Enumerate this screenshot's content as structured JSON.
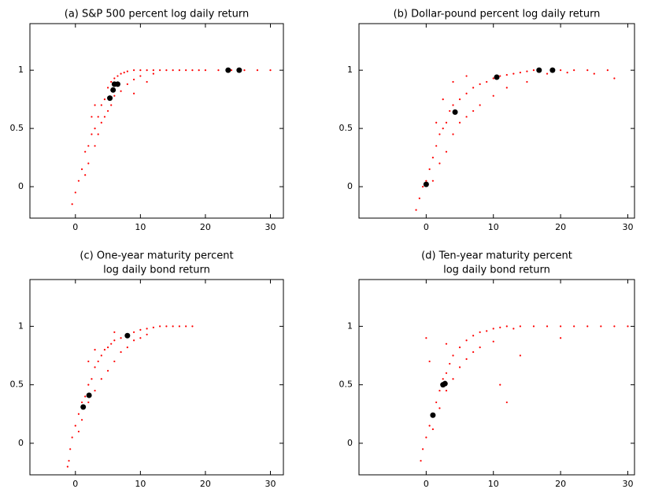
{
  "chart_data": [
    {
      "type": "scatter",
      "title": [
        "(a) S&P 500 percent log daily return"
      ],
      "xlim": [
        -7,
        32
      ],
      "ylim": [
        -0.27,
        1.4
      ],
      "xticks": [
        0,
        10,
        20,
        30
      ],
      "yticks": [
        0,
        0.5,
        1
      ],
      "series": [
        {
          "color": "#ff0000",
          "x": [
            -0.5,
            0,
            0.5,
            1,
            1.5,
            2,
            2,
            2.5,
            3,
            3,
            3.5,
            3.5,
            4,
            4,
            4.5,
            4.5,
            5,
            5,
            5.5,
            5.5,
            6,
            6,
            6.5,
            7,
            7,
            7.5,
            8,
            8,
            9,
            9,
            10,
            10,
            11,
            12,
            12,
            13,
            14,
            15,
            16,
            17,
            18,
            19,
            20,
            22,
            24,
            26,
            28,
            30,
            2.5,
            3,
            1.5,
            9,
            11
          ],
          "values": [
            -0.15,
            -0.05,
            0.05,
            0.15,
            0.3,
            0.35,
            0.2,
            0.45,
            0.5,
            0.35,
            0.6,
            0.45,
            0.7,
            0.55,
            0.75,
            0.6,
            0.85,
            0.65,
            0.9,
            0.7,
            0.93,
            0.78,
            0.95,
            0.97,
            0.82,
            0.98,
            0.99,
            0.88,
            1,
            0.92,
            1,
            0.95,
            1,
            1,
            0.97,
            1,
            1,
            1,
            1,
            1,
            1,
            1,
            1,
            1,
            1,
            1,
            1,
            1,
            0.6,
            0.7,
            0.1,
            0.8,
            0.9
          ]
        },
        {
          "color": "#000000",
          "x": [
            5.3,
            5.8,
            6,
            6.5,
            23.5,
            25.2
          ],
          "values": [
            0.76,
            0.83,
            0.88,
            0.88,
            1,
            1
          ]
        }
      ]
    },
    {
      "type": "scatter",
      "title": [
        "(b) Dollar-pound percent log daily return"
      ],
      "xlim": [
        -10,
        31
      ],
      "ylim": [
        -0.27,
        1.4
      ],
      "xticks": [
        0,
        10,
        20,
        30
      ],
      "yticks": [
        0,
        0.5,
        1
      ],
      "series": [
        {
          "color": "#ff0000",
          "x": [
            -1.5,
            -1,
            -0.5,
            0,
            0.5,
            1,
            1,
            1.5,
            2,
            2,
            2.5,
            3,
            3,
            3.5,
            4,
            4,
            5,
            5,
            6,
            6,
            7,
            7,
            8,
            8,
            9,
            10,
            10,
            11,
            12,
            12,
            13,
            14,
            15,
            15,
            16,
            17,
            18,
            19,
            20,
            21,
            22,
            24,
            25,
            27,
            28,
            1.5,
            2.5,
            4,
            6
          ],
          "values": [
            -0.2,
            -0.1,
            0,
            0.05,
            0.15,
            0.25,
            0.05,
            0.35,
            0.45,
            0.2,
            0.5,
            0.55,
            0.3,
            0.65,
            0.7,
            0.45,
            0.75,
            0.55,
            0.8,
            0.6,
            0.85,
            0.65,
            0.88,
            0.7,
            0.9,
            0.93,
            0.78,
            0.95,
            0.96,
            0.85,
            0.97,
            0.98,
            0.99,
            0.9,
            1,
            1,
            0.97,
            1,
            1,
            0.98,
            1,
            1,
            0.97,
            1,
            0.93,
            0.55,
            0.75,
            0.9,
            0.95
          ]
        },
        {
          "color": "#000000",
          "x": [
            0,
            4.3,
            10.5,
            16.8,
            18.8
          ],
          "values": [
            0.02,
            0.64,
            0.94,
            1,
            1
          ]
        }
      ]
    },
    {
      "type": "scatter",
      "title": [
        "(c) One-year maturity percent",
        "log daily bond return"
      ],
      "xlim": [
        -7,
        32
      ],
      "ylim": [
        -0.27,
        1.4
      ],
      "xticks": [
        0,
        10,
        20,
        30
      ],
      "yticks": [
        0,
        0.5,
        1
      ],
      "series": [
        {
          "color": "#ff0000",
          "x": [
            -1.2,
            -1,
            -0.8,
            -0.5,
            0,
            0.5,
            0.5,
            1,
            1,
            1.5,
            2,
            2,
            2.5,
            3,
            3,
            3.5,
            4,
            4,
            4.5,
            5,
            5,
            5.5,
            6,
            6,
            7,
            7,
            8,
            8,
            9,
            9,
            10,
            10,
            11,
            12,
            13,
            14,
            15,
            16,
            17,
            18,
            2,
            3,
            6,
            11
          ],
          "values": [
            -0.2,
            -0.15,
            -0.05,
            0.05,
            0.15,
            0.25,
            0.1,
            0.35,
            0.2,
            0.4,
            0.5,
            0.35,
            0.55,
            0.65,
            0.45,
            0.7,
            0.75,
            0.55,
            0.8,
            0.82,
            0.62,
            0.85,
            0.88,
            0.7,
            0.9,
            0.78,
            0.93,
            0.82,
            0.95,
            0.88,
            0.97,
            0.9,
            0.98,
            0.99,
            1,
            1,
            1,
            1,
            1,
            1,
            0.7,
            0.8,
            0.95,
            0.93
          ]
        },
        {
          "color": "#000000",
          "x": [
            1.2,
            2.1,
            8
          ],
          "values": [
            0.31,
            0.41,
            0.92
          ]
        }
      ]
    },
    {
      "type": "scatter",
      "title": [
        "(d) Ten-year maturity percent",
        "log daily bond return"
      ],
      "xlim": [
        -10,
        31
      ],
      "ylim": [
        -0.27,
        1.4
      ],
      "xticks": [
        0,
        10,
        20,
        30
      ],
      "yticks": [
        0,
        0.5,
        1
      ],
      "series": [
        {
          "color": "#ff0000",
          "x": [
            -0.8,
            -0.5,
            0,
            0.5,
            1,
            1,
            1.5,
            2,
            2,
            2.5,
            3,
            3,
            3.5,
            4,
            4,
            5,
            5,
            6,
            6,
            7,
            7,
            8,
            8,
            9,
            10,
            10,
            11,
            12,
            13,
            14,
            16,
            18,
            20,
            22,
            24,
            26,
            28,
            30,
            0,
            0.5,
            11,
            12,
            14,
            20,
            3
          ],
          "values": [
            -0.15,
            -0.05,
            0.05,
            0.15,
            0.25,
            0.12,
            0.35,
            0.45,
            0.3,
            0.55,
            0.6,
            0.45,
            0.68,
            0.75,
            0.55,
            0.82,
            0.65,
            0.88,
            0.72,
            0.92,
            0.78,
            0.95,
            0.82,
            0.96,
            0.98,
            0.87,
            0.99,
            1,
            0.98,
            1,
            1,
            1,
            1,
            1,
            1,
            1,
            1,
            1,
            0.9,
            0.7,
            0.5,
            0.35,
            0.75,
            0.9,
            0.85
          ]
        },
        {
          "color": "#000000",
          "x": [
            1,
            2.5,
            2.8
          ],
          "values": [
            0.24,
            0.5,
            0.51
          ]
        }
      ]
    }
  ]
}
